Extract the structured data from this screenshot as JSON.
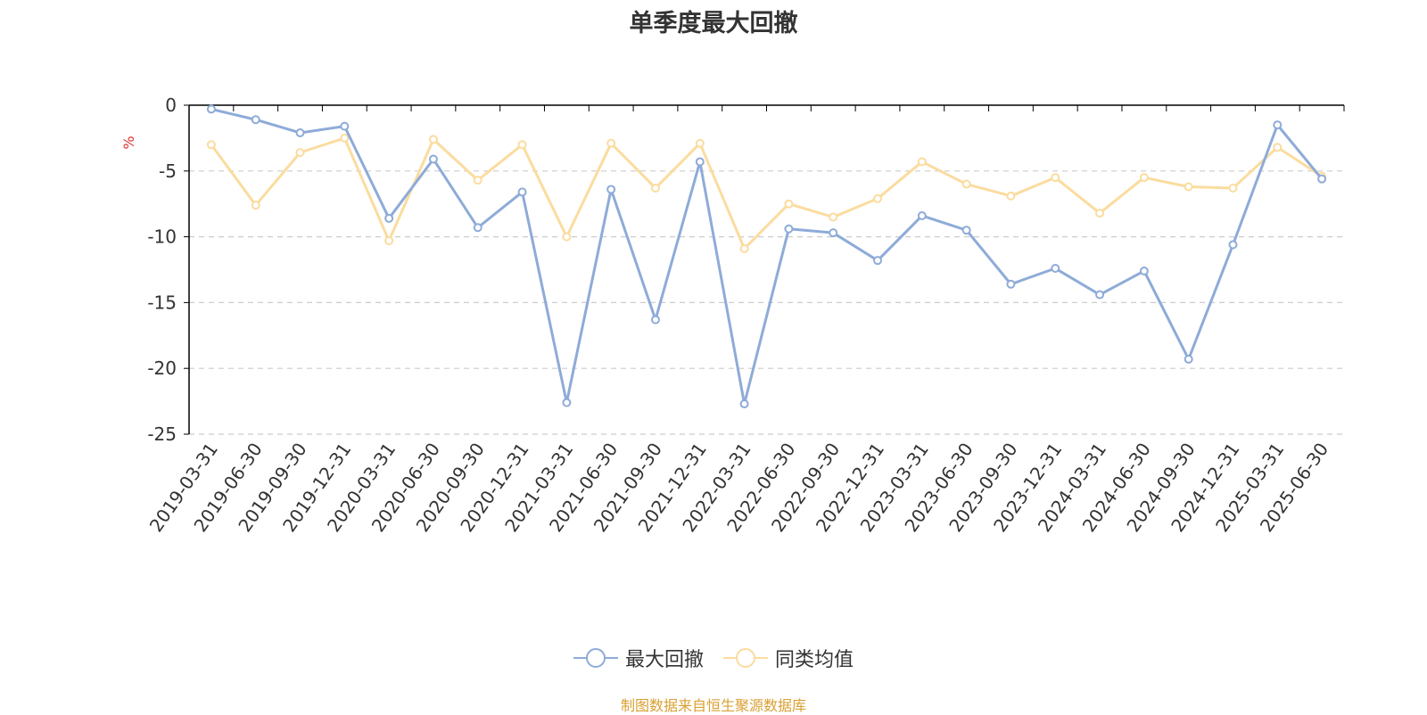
{
  "chart_data": {
    "type": "line",
    "title": "单季度最大回撤",
    "ylabel": "%",
    "ylim": [
      -25,
      0
    ],
    "yticks": [
      0,
      -5,
      -10,
      -15,
      -20,
      -25
    ],
    "grid": true,
    "legend_position": "bottom",
    "x": [
      "2019-03-31",
      "2019-06-30",
      "2019-09-30",
      "2019-12-31",
      "2020-03-31",
      "2020-06-30",
      "2020-09-30",
      "2020-12-31",
      "2021-03-31",
      "2021-06-30",
      "2021-09-30",
      "2021-12-31",
      "2022-03-31",
      "2022-06-30",
      "2022-09-30",
      "2022-12-31",
      "2023-03-31",
      "2023-06-30",
      "2023-09-30",
      "2023-12-31",
      "2024-03-31",
      "2024-06-30",
      "2024-09-30",
      "2024-12-31",
      "2025-03-31",
      "2025-06-30"
    ],
    "series": [
      {
        "name": "最大回撤",
        "color": "#8eabd8",
        "values": [
          -0.3,
          -1.1,
          -2.1,
          -1.6,
          -8.6,
          -4.1,
          -9.3,
          -6.6,
          -22.6,
          -6.4,
          -16.3,
          -4.3,
          -22.7,
          -9.4,
          -9.7,
          -11.8,
          -8.4,
          -9.5,
          -13.6,
          -12.4,
          -14.4,
          -12.6,
          -19.3,
          -10.6,
          -1.5,
          -5.6
        ]
      },
      {
        "name": "同类均值",
        "color": "#fbdc9f",
        "values": [
          -3.0,
          -7.6,
          -3.6,
          -2.5,
          -10.3,
          -2.6,
          -5.7,
          -3.0,
          -10.0,
          -2.9,
          -6.3,
          -2.9,
          -10.9,
          -7.5,
          -8.5,
          -7.1,
          -4.3,
          -6.0,
          -6.9,
          -5.5,
          -8.2,
          -5.5,
          -6.2,
          -6.3,
          -3.2,
          -5.4
        ]
      }
    ]
  },
  "footer": {
    "source": "制图数据来自恒生聚源数据库"
  },
  "colors": {
    "axis": "#000000",
    "grid": "#cccccc",
    "ylabel": "#e03030",
    "source": "#d9a032",
    "text": "#333333"
  }
}
